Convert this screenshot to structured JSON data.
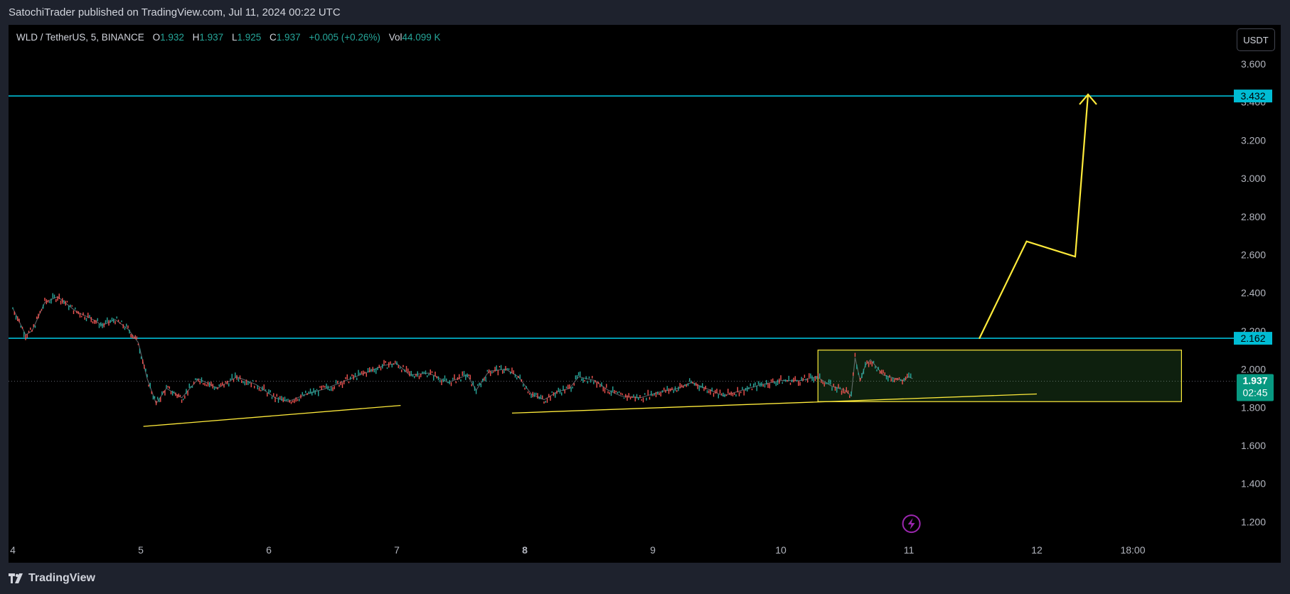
{
  "header": {
    "published": "SatochiTrader published on TradingView.com, Jul 11, 2024 00:22 UTC"
  },
  "legend": {
    "symbol": "WLD / TetherUS, 5, BINANCE",
    "open_label": "O",
    "open": "1.932",
    "high_label": "H",
    "high": "1.937",
    "low_label": "L",
    "low": "1.925",
    "close_label": "C",
    "close": "1.937",
    "change": "+0.005 (+0.26%)",
    "vol_label": "Vol",
    "vol": "44.099 K"
  },
  "unit_button": "USDT",
  "footer": {
    "brand": "TradingView",
    "logo_icon": "tradingview-logo-icon"
  },
  "chart_data": {
    "type": "line",
    "ylim": [
      1.1,
      3.7
    ],
    "y_ticks": [
      "3.600",
      "3.400",
      "3.200",
      "3.000",
      "2.800",
      "2.600",
      "2.400",
      "2.200",
      "2.000",
      "1.800",
      "1.600",
      "1.400",
      "1.200"
    ],
    "x_ticks": [
      "4",
      "5",
      "6",
      "7",
      "8",
      "9",
      "10",
      "11",
      "12",
      "18:00"
    ],
    "x_tick_positions": [
      4,
      5,
      6,
      7,
      8,
      9,
      10,
      11,
      12,
      12.75
    ],
    "xlim": [
      3.99,
      13.9
    ],
    "series": [
      {
        "values": [
          [
            4.0,
            2.32
          ],
          [
            4.1,
            2.18
          ],
          [
            4.15,
            2.2
          ],
          [
            4.25,
            2.35
          ],
          [
            4.35,
            2.38
          ],
          [
            4.5,
            2.3
          ],
          [
            4.6,
            2.27
          ],
          [
            4.7,
            2.23
          ],
          [
            4.8,
            2.26
          ],
          [
            4.9,
            2.21
          ],
          [
            4.98,
            2.14
          ],
          [
            5.05,
            1.95
          ],
          [
            5.12,
            1.82
          ],
          [
            5.2,
            1.9
          ],
          [
            5.32,
            1.85
          ],
          [
            5.45,
            1.95
          ],
          [
            5.6,
            1.9
          ],
          [
            5.75,
            1.96
          ],
          [
            5.9,
            1.92
          ],
          [
            6.05,
            1.85
          ],
          [
            6.15,
            1.83
          ],
          [
            6.3,
            1.87
          ],
          [
            6.45,
            1.9
          ],
          [
            6.6,
            1.94
          ],
          [
            6.75,
            1.98
          ],
          [
            6.9,
            2.02
          ],
          [
            7.0,
            2.03
          ],
          [
            7.1,
            1.97
          ],
          [
            7.25,
            1.98
          ],
          [
            7.4,
            1.93
          ],
          [
            7.55,
            1.97
          ],
          [
            7.62,
            1.89
          ],
          [
            7.72,
            1.99
          ],
          [
            7.85,
            2.0
          ],
          [
            7.95,
            1.96
          ],
          [
            8.05,
            1.87
          ],
          [
            8.15,
            1.84
          ],
          [
            8.25,
            1.88
          ],
          [
            8.35,
            1.9
          ],
          [
            8.42,
            1.96
          ],
          [
            8.55,
            1.94
          ],
          [
            8.65,
            1.89
          ],
          [
            8.75,
            1.86
          ],
          [
            8.9,
            1.85
          ],
          [
            9.05,
            1.88
          ],
          [
            9.2,
            1.9
          ],
          [
            9.3,
            1.93
          ],
          [
            9.45,
            1.89
          ],
          [
            9.55,
            1.86
          ],
          [
            9.7,
            1.89
          ],
          [
            9.85,
            1.92
          ],
          [
            10.0,
            1.94
          ],
          [
            10.15,
            1.94
          ],
          [
            10.28,
            1.96
          ],
          [
            10.4,
            1.91
          ],
          [
            10.5,
            1.89
          ],
          [
            10.55,
            1.86
          ],
          [
            10.58,
            2.06
          ],
          [
            10.62,
            1.94
          ],
          [
            10.66,
            2.02
          ],
          [
            10.7,
            2.05
          ],
          [
            10.8,
            1.97
          ],
          [
            10.9,
            1.95
          ],
          [
            10.95,
            1.94
          ],
          [
            11.0,
            1.96
          ],
          [
            11.03,
            1.95
          ]
        ]
      }
    ],
    "horizontal_levels": [
      {
        "value": 3.432,
        "label": "3.432",
        "color": "#00bcd4"
      },
      {
        "value": 2.162,
        "label": "2.162",
        "color": "#00bcd4"
      }
    ],
    "last_price": {
      "value": 1.937,
      "label": "1.937",
      "countdown": "02:45",
      "color": "#089981"
    },
    "annotations": {
      "color": "#ffeb3b",
      "trendlines": [
        {
          "from": [
            5.02,
            1.7
          ],
          "to": [
            7.03,
            1.81
          ]
        },
        {
          "from": [
            7.9,
            1.77
          ],
          "to": [
            12.0,
            1.87
          ]
        }
      ],
      "rectangle": {
        "x1": 10.29,
        "y1": 1.83,
        "x2": 13.13,
        "y2": 2.1,
        "fill": "rgba(76,175,80,0.18)"
      },
      "path_arrow": [
        [
          11.55,
          2.16
        ],
        [
          11.92,
          2.67
        ],
        [
          12.3,
          2.59
        ],
        [
          12.4,
          3.44
        ]
      ]
    },
    "lightning_icon": {
      "name": "lightning-icon",
      "color": "#9c27b0",
      "x": 11.02,
      "y": 1.19
    }
  }
}
